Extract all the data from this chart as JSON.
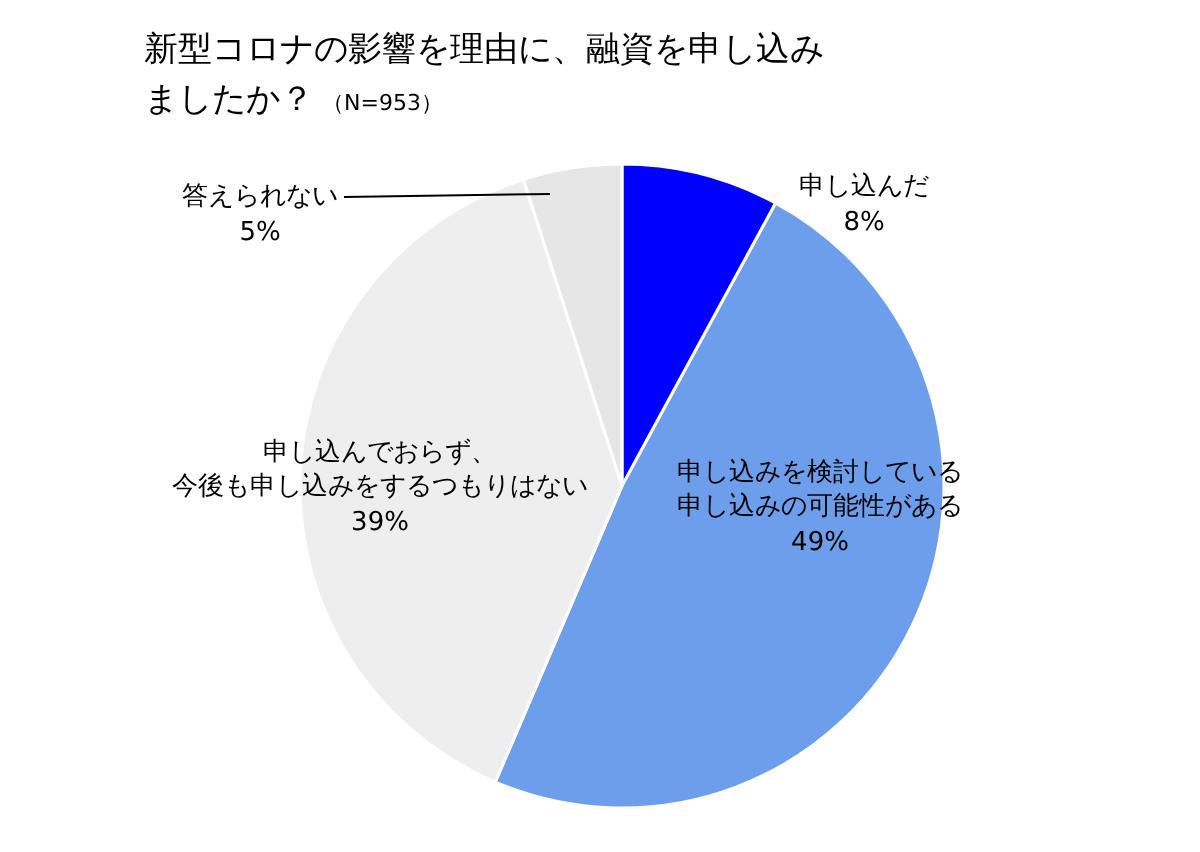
{
  "chart_data": {
    "type": "pie",
    "title": "新型コロナの影響を理由に、融資を申し込みましたか？",
    "subtitle": "（N=953）",
    "categories": [
      "申し込んだ",
      "申し込みを検討している申し込みの可能性がある",
      "申し込んでおらず、今後も申し込みをするつもりはない",
      "答えられない"
    ],
    "values": [
      8,
      49,
      39,
      5
    ],
    "value_labels": [
      "8%",
      "49%",
      "39%",
      "5%"
    ],
    "colors": [
      "#0000ff",
      "#6d9eeb",
      "#eeeeee",
      "#e6e6e6"
    ]
  }
}
